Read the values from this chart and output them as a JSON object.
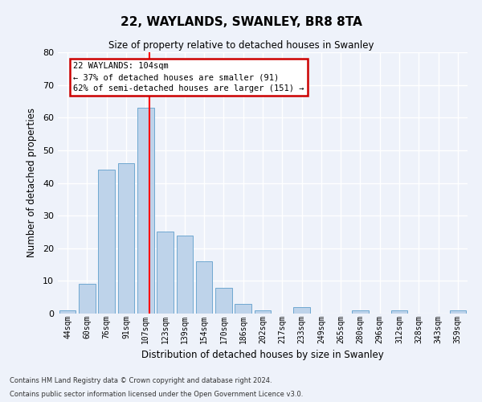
{
  "title": "22, WAYLANDS, SWANLEY, BR8 8TA",
  "subtitle": "Size of property relative to detached houses in Swanley",
  "xlabel": "Distribution of detached houses by size in Swanley",
  "ylabel": "Number of detached properties",
  "categories": [
    "44sqm",
    "60sqm",
    "76sqm",
    "91sqm",
    "107sqm",
    "123sqm",
    "139sqm",
    "154sqm",
    "170sqm",
    "186sqm",
    "202sqm",
    "217sqm",
    "233sqm",
    "249sqm",
    "265sqm",
    "280sqm",
    "296sqm",
    "312sqm",
    "328sqm",
    "343sqm",
    "359sqm"
  ],
  "values": [
    1,
    9,
    44,
    46,
    63,
    25,
    24,
    16,
    8,
    3,
    1,
    0,
    2,
    0,
    0,
    1,
    0,
    1,
    0,
    0,
    1
  ],
  "bar_color": "#bed3ea",
  "bar_edge_color": "#6fa8d0",
  "background_color": "#eef2fa",
  "grid_color": "#ffffff",
  "ylim": [
    0,
    80
  ],
  "yticks": [
    0,
    10,
    20,
    30,
    40,
    50,
    60,
    70,
    80
  ],
  "red_line_x": 4.18,
  "annotation_line1": "22 WAYLANDS: 104sqm",
  "annotation_line2": "← 37% of detached houses are smaller (91)",
  "annotation_line3": "62% of semi-detached houses are larger (151) →",
  "annotation_box_color": "#ffffff",
  "annotation_border_color": "#cc0000",
  "footnote1": "Contains HM Land Registry data © Crown copyright and database right 2024.",
  "footnote2": "Contains public sector information licensed under the Open Government Licence v3.0."
}
